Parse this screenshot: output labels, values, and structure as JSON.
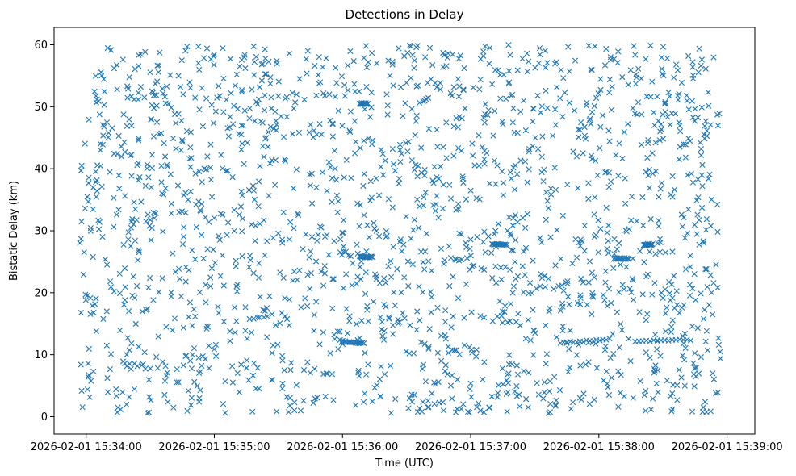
{
  "chart_data": {
    "type": "scatter",
    "title": "Detections in Delay",
    "xlabel": "Time (UTC)",
    "ylabel": "Bistatic Delay (km)",
    "marker": "x",
    "color": "#1f77b4",
    "grid": false,
    "legend": "none",
    "xlim": [
      "2026-02-01 15:33:45",
      "2026-02-01 15:39:13"
    ],
    "ylim": [
      -2.8,
      62.8
    ],
    "x_ticks": [
      "2026-02-01 15:34:00",
      "2026-02-01 15:35:00",
      "2026-02-01 15:36:00",
      "2026-02-01 15:37:00",
      "2026-02-01 15:38:00",
      "2026-02-01 15:39:00"
    ],
    "y_ticks": [
      "0",
      "10",
      "20",
      "30",
      "40",
      "50",
      "60"
    ],
    "x_range_observed": [
      "2026-02-01 15:33:57",
      "2026-02-01 15:38:57"
    ],
    "detection_count_estimate": 2000,
    "clutter_y_range": [
      0.5,
      60
    ],
    "tracks": [
      {
        "x_start": "2026-02-01 15:36:00",
        "x_end": "2026-02-01 15:36:10",
        "y_start": 12.2,
        "y_end": 11.8
      },
      {
        "x_start": "2026-02-01 15:37:42",
        "x_end": "2026-02-01 15:38:05",
        "y_start": 11.9,
        "y_end": 12.5
      },
      {
        "x_start": "2026-02-01 15:38:17",
        "x_end": "2026-02-01 15:38:43",
        "y_start": 12.2,
        "y_end": 12.4
      },
      {
        "x_start": "2026-02-01 15:37:10",
        "x_end": "2026-02-01 15:37:17",
        "y_start": 27.8,
        "y_end": 27.8
      },
      {
        "x_start": "2026-02-01 15:38:07",
        "x_end": "2026-02-01 15:38:14",
        "y_start": 25.5,
        "y_end": 25.5
      },
      {
        "x_start": "2026-02-01 15:38:21",
        "x_end": "2026-02-01 15:38:25",
        "y_start": 27.8,
        "y_end": 27.8
      },
      {
        "x_start": "2026-02-01 15:36:08",
        "x_end": "2026-02-01 15:36:12",
        "y_start": 50.5,
        "y_end": 50.5
      },
      {
        "x_start": "2026-02-01 15:36:08",
        "x_end": "2026-02-01 15:36:14",
        "y_start": 25.8,
        "y_end": 25.8
      }
    ]
  }
}
